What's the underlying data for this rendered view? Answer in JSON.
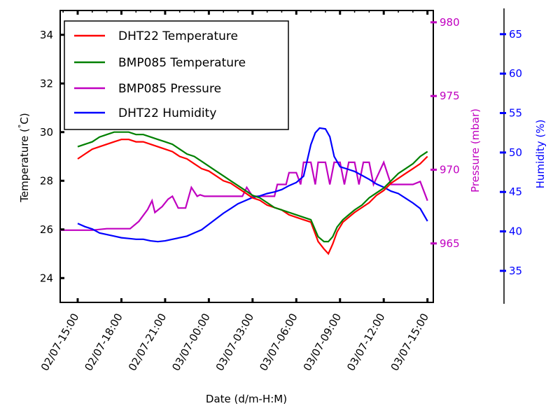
{
  "chart_data": {
    "type": "line",
    "xlabel": "Date (d/m-H:M)",
    "x_tick_labels": [
      "02/07-15:00",
      "02/07-18:00",
      "02/07-21:00",
      "03/07-00:00",
      "03/07-03:00",
      "03/07-06:00",
      "03/07-09:00",
      "03/07-12:00",
      "03/07-15:00"
    ],
    "x_range_hours": [
      -1.2,
      24.4
    ],
    "grid": false,
    "legend_placement": "top-left",
    "axes": {
      "temperature": {
        "label": "Temperature (°C)",
        "label_main": "Temperature (",
        "label_unit": "C)",
        "ylim": [
          23,
          35
        ],
        "ticks": [
          24,
          26,
          28,
          30,
          32,
          34
        ],
        "color": "#000000"
      },
      "pressure": {
        "label": "Pressure (mbar)",
        "ylim": [
          961,
          980.8
        ],
        "ticks": [
          965,
          970,
          975,
          980
        ],
        "color": "#c000c0"
      },
      "humidity": {
        "label": "Humidity (%)",
        "ylim": [
          31,
          68
        ],
        "ticks": [
          35,
          40,
          45,
          50,
          55,
          60,
          65
        ],
        "color": "#0000ff"
      }
    },
    "series": [
      {
        "name": "DHT22 Temperature",
        "axis": "temperature",
        "color": "#ff0000",
        "x": [
          0,
          0.5,
          1,
          1.5,
          2,
          2.5,
          3,
          3.5,
          4,
          4.5,
          5,
          5.5,
          6,
          6.5,
          7,
          7.5,
          8,
          8.5,
          9,
          9.5,
          10,
          10.5,
          11,
          11.5,
          12,
          12.5,
          13,
          13.5,
          14,
          14.5,
          15,
          15.5,
          16,
          16.5,
          16.9,
          17.2,
          17.5,
          17.8,
          18.2,
          18.6,
          19,
          19.5,
          20,
          20.5,
          21,
          21.5,
          22,
          22.5,
          23,
          23.5,
          24
        ],
        "values": [
          28.9,
          29.1,
          29.3,
          29.4,
          29.5,
          29.6,
          29.7,
          29.7,
          29.6,
          29.6,
          29.5,
          29.4,
          29.3,
          29.2,
          29.0,
          28.9,
          28.7,
          28.5,
          28.4,
          28.2,
          28.0,
          27.9,
          27.7,
          27.5,
          27.3,
          27.2,
          27.0,
          26.9,
          26.8,
          26.6,
          26.5,
          26.4,
          26.3,
          25.5,
          25.2,
          25.0,
          25.4,
          25.9,
          26.3,
          26.5,
          26.7,
          26.9,
          27.1,
          27.4,
          27.6,
          27.9,
          28.1,
          28.3,
          28.5,
          28.7,
          29.0
        ]
      },
      {
        "name": "BMP085 Temperature",
        "axis": "temperature",
        "color": "#008000",
        "x": [
          0,
          0.5,
          1,
          1.5,
          2,
          2.5,
          3,
          3.5,
          4,
          4.5,
          5,
          5.5,
          6,
          6.5,
          7,
          7.5,
          8,
          8.5,
          9,
          9.5,
          10,
          10.5,
          11,
          11.5,
          12,
          12.5,
          13,
          13.5,
          14,
          14.5,
          15,
          15.5,
          16,
          16.5,
          16.9,
          17.2,
          17.5,
          17.8,
          18.2,
          18.6,
          19,
          19.5,
          20,
          20.5,
          21,
          21.5,
          22,
          22.5,
          23,
          23.5,
          24
        ],
        "values": [
          29.4,
          29.5,
          29.6,
          29.8,
          29.9,
          30.0,
          30.0,
          30.0,
          29.9,
          29.9,
          29.8,
          29.7,
          29.6,
          29.5,
          29.3,
          29.1,
          29.0,
          28.8,
          28.6,
          28.4,
          28.2,
          28.0,
          27.8,
          27.6,
          27.4,
          27.3,
          27.1,
          26.9,
          26.8,
          26.7,
          26.6,
          26.5,
          26.4,
          25.7,
          25.5,
          25.5,
          25.7,
          26.1,
          26.4,
          26.6,
          26.8,
          27.0,
          27.3,
          27.5,
          27.7,
          28.0,
          28.3,
          28.5,
          28.7,
          29.0,
          29.2
        ]
      },
      {
        "name": "BMP085 Pressure",
        "axis": "pressure",
        "color": "#c000c0",
        "x": [
          -1.2,
          0,
          1,
          2,
          2.8,
          3.6,
          4.2,
          4.8,
          5.1,
          5.3,
          5.8,
          6.2,
          6.5,
          6.9,
          7.1,
          7.4,
          7.8,
          8.2,
          8.4,
          8.7,
          9.0,
          10.5,
          11,
          11.3,
          11.6,
          12,
          13,
          13.5,
          13.7,
          14.3,
          14.5,
          15,
          15.3,
          15.5,
          16,
          16.3,
          16.5,
          17,
          17.3,
          17.6,
          18,
          18.3,
          18.6,
          19,
          19.3,
          19.6,
          20,
          20.3,
          21,
          21.5,
          22,
          22.5,
          23,
          23.5,
          24
        ],
        "values": [
          965.9,
          965.9,
          965.9,
          966.0,
          966.0,
          966.0,
          966.5,
          967.3,
          967.9,
          967.1,
          967.5,
          968.0,
          968.2,
          967.4,
          967.4,
          967.4,
          968.8,
          968.2,
          968.3,
          968.2,
          968.2,
          968.2,
          968.2,
          968.2,
          968.8,
          968.2,
          968.2,
          968.2,
          969.0,
          969.0,
          969.8,
          969.8,
          969.0,
          970.5,
          970.5,
          969.0,
          970.5,
          970.5,
          969.0,
          970.5,
          970.5,
          969.0,
          970.5,
          970.5,
          969.0,
          970.5,
          970.5,
          969.0,
          970.5,
          969.0,
          969.0,
          969.0,
          969.0,
          969.2,
          967.9
        ]
      },
      {
        "name": "DHT22 Humidity",
        "axis": "humidity",
        "color": "#0000ff",
        "x": [
          0,
          0.5,
          1,
          1.5,
          2,
          2.5,
          3,
          3.5,
          4,
          4.5,
          5,
          5.5,
          6,
          6.5,
          7,
          7.5,
          8,
          8.5,
          9,
          9.5,
          10,
          10.5,
          11,
          11.5,
          12,
          12.5,
          13,
          13.5,
          14,
          14.5,
          15,
          15.5,
          16,
          16.3,
          16.6,
          17,
          17.3,
          17.6,
          18,
          18.5,
          19,
          19.5,
          20,
          20.5,
          21,
          21.5,
          22,
          22.5,
          23,
          23.5,
          24
        ],
        "values": [
          41.0,
          40.6,
          40.3,
          39.8,
          39.6,
          39.4,
          39.2,
          39.1,
          39.0,
          39.0,
          38.8,
          38.7,
          38.8,
          39.0,
          39.2,
          39.4,
          39.8,
          40.2,
          40.9,
          41.6,
          42.3,
          42.9,
          43.5,
          43.9,
          44.3,
          44.5,
          44.8,
          45.0,
          45.3,
          45.8,
          46.2,
          47.0,
          51.0,
          52.5,
          53.1,
          53.0,
          52.0,
          49.5,
          48.2,
          47.9,
          47.6,
          47.1,
          46.6,
          46.0,
          45.6,
          45.1,
          44.8,
          44.2,
          43.6,
          42.9,
          41.3
        ]
      }
    ]
  }
}
